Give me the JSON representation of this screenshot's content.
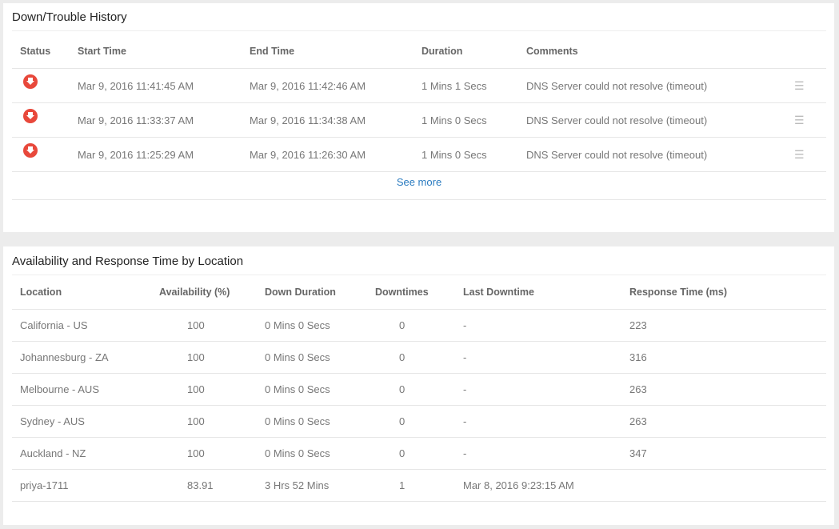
{
  "history": {
    "title": "Down/Trouble History",
    "columns": [
      "Status",
      "Start Time",
      "End Time",
      "Duration",
      "Comments"
    ],
    "rows": [
      {
        "status": "down",
        "start": "Mar 9, 2016 11:41:45 AM",
        "end": "Mar 9, 2016 11:42:46 AM",
        "duration": "1 Mins 1 Secs",
        "comment": "DNS Server could not resolve (timeout)"
      },
      {
        "status": "down",
        "start": "Mar 9, 2016 11:33:37 AM",
        "end": "Mar 9, 2016 11:34:38 AM",
        "duration": "1 Mins 0 Secs",
        "comment": "DNS Server could not resolve (timeout)"
      },
      {
        "status": "down",
        "start": "Mar 9, 2016 11:25:29 AM",
        "end": "Mar 9, 2016 11:26:30 AM",
        "duration": "1 Mins 0 Secs",
        "comment": "DNS Server could not resolve (timeout)"
      }
    ],
    "see_more": "See more",
    "status_color": "#e8483b"
  },
  "locations": {
    "title": "Availability and Response Time by Location",
    "columns": [
      "Location",
      "Availability (%)",
      "Down Duration",
      "Downtimes",
      "Last Downtime",
      "Response Time (ms)"
    ],
    "rows": [
      {
        "location": "California - US",
        "availability": "100",
        "down_duration": "0 Mins 0 Secs",
        "downtimes": "0",
        "last_downtime": "-",
        "response": "223"
      },
      {
        "location": "Johannesburg - ZA",
        "availability": "100",
        "down_duration": "0 Mins 0 Secs",
        "downtimes": "0",
        "last_downtime": "-",
        "response": "316"
      },
      {
        "location": "Melbourne - AUS",
        "availability": "100",
        "down_duration": "0 Mins 0 Secs",
        "downtimes": "0",
        "last_downtime": "-",
        "response": "263"
      },
      {
        "location": "Sydney - AUS",
        "availability": "100",
        "down_duration": "0 Mins 0 Secs",
        "downtimes": "0",
        "last_downtime": "-",
        "response": "263"
      },
      {
        "location": "Auckland - NZ",
        "availability": "100",
        "down_duration": "0 Mins 0 Secs",
        "downtimes": "0",
        "last_downtime": "-",
        "response": "347"
      },
      {
        "location": "priya-1711",
        "availability": "83.91",
        "down_duration": "3 Hrs 52 Mins",
        "downtimes": "1",
        "last_downtime": "Mar 8, 2016 9:23:15 AM",
        "response": ""
      }
    ]
  }
}
